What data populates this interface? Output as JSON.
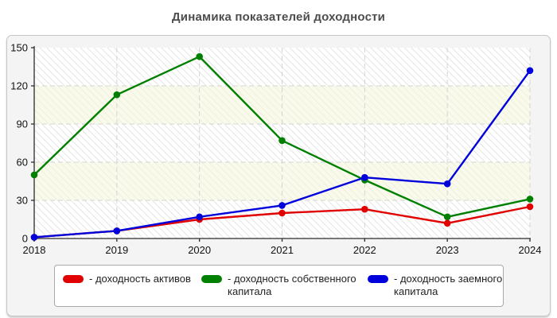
{
  "chart_data": {
    "type": "line",
    "title": "Динамика показателей доходности",
    "categories": [
      "2018",
      "2019",
      "2020",
      "2021",
      "2022",
      "2023",
      "2024"
    ],
    "series": [
      {
        "id": "assets",
        "name": "доходность активов",
        "legend_label": "- доходность активов",
        "color": "#e00000",
        "values": [
          1,
          6,
          15,
          20,
          23,
          12,
          25
        ]
      },
      {
        "id": "equity",
        "name": "доходность собственного капитала",
        "legend_label": "- доходность собственного капитала",
        "color": "#008000",
        "values": [
          50,
          113,
          143,
          77,
          46,
          17,
          31
        ]
      },
      {
        "id": "debt",
        "name": "доходность заемного капитала",
        "legend_label": "- доходность заемного капитала",
        "color": "#0000dd",
        "values": [
          1,
          6,
          17,
          26,
          48,
          43,
          132
        ]
      }
    ],
    "ylim": [
      0,
      150
    ],
    "y_ticks": [
      0,
      30,
      60,
      90,
      120,
      150
    ],
    "grid": "dashed",
    "legend_position": "bottom"
  }
}
